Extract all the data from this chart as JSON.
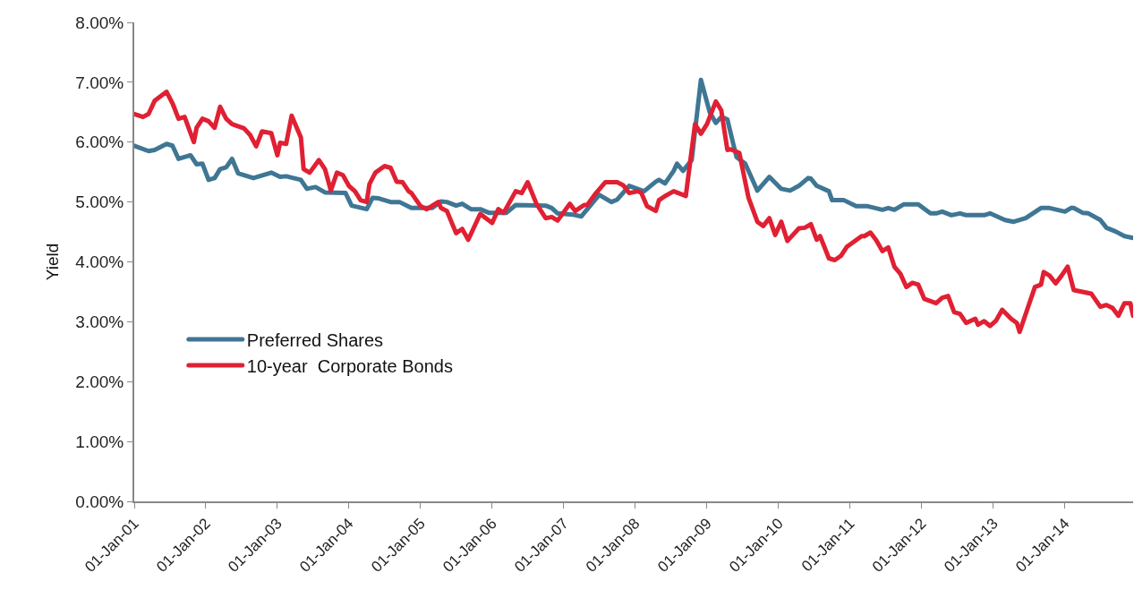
{
  "chart_data": {
    "type": "line",
    "ylabel": "Yield",
    "xlim": [
      "2001-01-01",
      "2014-12-15"
    ],
    "ylim": [
      0,
      8
    ],
    "yticks": [
      {
        "value": 0,
        "label": "0.00%"
      },
      {
        "value": 1,
        "label": "1.00%"
      },
      {
        "value": 2,
        "label": "2.00%"
      },
      {
        "value": 3,
        "label": "3.00%"
      },
      {
        "value": 4,
        "label": "4.00%"
      },
      {
        "value": 5,
        "label": "5.00%"
      },
      {
        "value": 6,
        "label": "6.00%"
      },
      {
        "value": 7,
        "label": "7.00%"
      },
      {
        "value": 8,
        "label": "8.00%"
      }
    ],
    "xticks": [
      {
        "value": "2001-01-01",
        "label": "01-Jan-01"
      },
      {
        "value": "2002-01-01",
        "label": "01-Jan-02"
      },
      {
        "value": "2003-01-01",
        "label": "01-Jan-03"
      },
      {
        "value": "2004-01-01",
        "label": "01-Jan-04"
      },
      {
        "value": "2005-01-01",
        "label": "01-Jan-05"
      },
      {
        "value": "2006-01-01",
        "label": "01-Jan-06"
      },
      {
        "value": "2007-01-01",
        "label": "01-Jan-07"
      },
      {
        "value": "2008-01-01",
        "label": "01-Jan-08"
      },
      {
        "value": "2009-01-01",
        "label": "01-Jan-09"
      },
      {
        "value": "2010-01-01",
        "label": "01-Jan-10"
      },
      {
        "value": "2011-01-01",
        "label": "01-Jan-11"
      },
      {
        "value": "2012-01-01",
        "label": "01-Jan-12"
      },
      {
        "value": "2013-01-01",
        "label": "01-Jan-13"
      },
      {
        "value": "2014-01-01",
        "label": "01-Jan-14"
      }
    ],
    "grid": false,
    "legend": "left",
    "marker": "none",
    "line_style": "solid",
    "series": [
      {
        "name": "Preferred Shares",
        "color": "#3f7694",
        "x": [
          "2001-01-01",
          "2001-03-15",
          "2001-04-15",
          "2001-06-15",
          "2001-07-15",
          "2001-08-15",
          "2001-10-15",
          "2001-11-15",
          "2001-12-15",
          "2002-01-15",
          "2002-02-15",
          "2002-03-15",
          "2002-04-15",
          "2002-05-15",
          "2002-06-15",
          "2002-09-01",
          "2002-12-01",
          "2003-01-15",
          "2003-02-15",
          "2003-05-01",
          "2003-06-01",
          "2003-07-15",
          "2003-09-01",
          "2003-12-15",
          "2004-01-15",
          "2004-04-01",
          "2004-05-01",
          "2004-06-01",
          "2004-08-01",
          "2004-09-15",
          "2004-11-15",
          "2005-03-01",
          "2005-04-15",
          "2005-05-15",
          "2005-07-01",
          "2005-08-01",
          "2005-09-15",
          "2005-11-01",
          "2005-12-15",
          "2006-03-15",
          "2006-05-01",
          "2006-10-01",
          "2006-11-01",
          "2006-12-01",
          "2007-02-15",
          "2007-04-01",
          "2007-07-01",
          "2007-09-01",
          "2007-10-01",
          "2007-12-01",
          "2008-02-15",
          "2008-04-15",
          "2008-05-01",
          "2008-06-01",
          "2008-07-15",
          "2008-08-01",
          "2008-09-01",
          "2008-10-15",
          "2008-12-01",
          "2009-01-15",
          "2009-02-15",
          "2009-03-15",
          "2009-04-15",
          "2009-05-15",
          "2009-06-01",
          "2009-07-15",
          "2009-09-15",
          "2009-11-15",
          "2010-01-15",
          "2010-03-01",
          "2010-04-15",
          "2010-06-01",
          "2010-06-15",
          "2010-07-15",
          "2010-09-15",
          "2010-10-01",
          "2010-12-01",
          "2011-02-01",
          "2011-04-01",
          "2011-06-15",
          "2011-07-15",
          "2011-08-15",
          "2011-10-01",
          "2011-12-15",
          "2012-02-15",
          "2012-03-15",
          "2012-04-15",
          "2012-06-01",
          "2012-07-15",
          "2012-08-15",
          "2012-11-15",
          "2012-12-15",
          "2013-03-01",
          "2013-04-15",
          "2013-06-15",
          "2013-09-01",
          "2013-10-15",
          "2014-01-01",
          "2014-02-01",
          "2014-02-15",
          "2014-04-01",
          "2014-05-01",
          "2014-07-01",
          "2014-08-01",
          "2014-09-15",
          "2014-11-01",
          "2014-12-15"
        ],
        "values": [
          5.94,
          5.85,
          5.87,
          5.97,
          5.94,
          5.72,
          5.78,
          5.63,
          5.64,
          5.37,
          5.4,
          5.55,
          5.58,
          5.72,
          5.48,
          5.4,
          5.49,
          5.42,
          5.43,
          5.37,
          5.22,
          5.25,
          5.16,
          5.15,
          4.94,
          4.88,
          5.07,
          5.06,
          5.0,
          5.0,
          4.9,
          4.9,
          5.01,
          5.0,
          4.94,
          4.97,
          4.88,
          4.88,
          4.82,
          4.82,
          4.95,
          4.94,
          4.9,
          4.81,
          4.79,
          4.76,
          5.12,
          5.0,
          5.04,
          5.27,
          5.18,
          5.34,
          5.37,
          5.31,
          5.52,
          5.64,
          5.52,
          5.7,
          7.04,
          6.5,
          6.32,
          6.42,
          6.38,
          5.97,
          5.75,
          5.64,
          5.19,
          5.42,
          5.22,
          5.19,
          5.27,
          5.4,
          5.39,
          5.27,
          5.18,
          5.03,
          5.03,
          4.93,
          4.93,
          4.87,
          4.9,
          4.87,
          4.96,
          4.96,
          4.81,
          4.81,
          4.84,
          4.78,
          4.81,
          4.78,
          4.78,
          4.81,
          4.7,
          4.67,
          4.73,
          4.9,
          4.9,
          4.84,
          4.9,
          4.9,
          4.82,
          4.81,
          4.7,
          4.57,
          4.51,
          4.43,
          4.4
        ]
      },
      {
        "name": "10-year  Corporate Bonds",
        "color": "#e02033",
        "x": [
          "2001-01-01",
          "2001-02-15",
          "2001-03-15",
          "2001-04-15",
          "2001-06-15",
          "2001-07-15",
          "2001-08-15",
          "2001-09-15",
          "2001-11-01",
          "2001-11-15",
          "2001-12-15",
          "2002-01-15",
          "2002-02-15",
          "2002-03-15",
          "2002-04-15",
          "2002-05-15",
          "2002-07-15",
          "2002-08-15",
          "2002-09-15",
          "2002-10-15",
          "2002-12-01",
          "2003-01-01",
          "2003-01-15",
          "2003-02-15",
          "2003-03-15",
          "2003-05-01",
          "2003-05-15",
          "2003-06-15",
          "2003-08-01",
          "2003-09-01",
          "2003-10-01",
          "2003-11-01",
          "2003-12-01",
          "2004-01-01",
          "2004-02-01",
          "2004-03-01",
          "2004-04-01",
          "2004-04-15",
          "2004-05-15",
          "2004-07-01",
          "2004-08-01",
          "2004-09-01",
          "2004-10-01",
          "2004-11-01",
          "2004-11-15",
          "2005-01-01",
          "2005-02-01",
          "2005-04-01",
          "2005-04-15",
          "2005-05-15",
          "2005-07-01",
          "2005-08-01",
          "2005-09-01",
          "2005-11-01",
          "2006-01-01",
          "2006-02-01",
          "2006-03-01",
          "2006-05-01",
          "2006-06-01",
          "2006-07-01",
          "2006-08-15",
          "2006-10-01",
          "2006-11-01",
          "2006-12-01",
          "2007-02-01",
          "2007-03-01",
          "2007-04-15",
          "2007-05-01",
          "2007-06-15",
          "2007-08-01",
          "2007-10-01",
          "2007-11-01",
          "2007-12-01",
          "2008-01-15",
          "2008-02-01",
          "2008-03-01",
          "2008-04-15",
          "2008-05-01",
          "2008-06-01",
          "2008-07-15",
          "2008-09-15",
          "2008-11-01",
          "2008-12-01",
          "2009-01-01",
          "2009-02-15",
          "2009-03-15",
          "2009-04-15",
          "2009-05-01",
          "2009-06-15",
          "2009-07-15",
          "2009-08-01",
          "2009-09-15",
          "2009-10-15",
          "2009-11-15",
          "2009-12-15",
          "2010-01-15",
          "2010-02-15",
          "2010-04-15",
          "2010-05-15",
          "2010-06-15",
          "2010-07-15",
          "2010-08-01",
          "2010-09-15",
          "2010-10-15",
          "2010-11-15",
          "2010-12-15",
          "2011-03-01",
          "2011-03-15",
          "2011-04-15",
          "2011-05-15",
          "2011-06-15",
          "2011-07-15",
          "2011-08-15",
          "2011-09-15",
          "2011-10-15",
          "2011-11-15",
          "2011-12-15",
          "2012-01-15",
          "2012-03-15",
          "2012-04-15",
          "2012-05-15",
          "2012-06-15",
          "2012-07-15",
          "2012-08-15",
          "2012-10-01",
          "2012-10-15",
          "2012-11-15",
          "2012-12-15",
          "2013-01-15",
          "2013-02-15",
          "2013-04-01",
          "2013-05-01",
          "2013-05-15",
          "2013-06-15",
          "2013-08-01",
          "2013-09-01",
          "2013-09-15",
          "2013-10-15",
          "2013-11-15",
          "2013-12-15",
          "2014-01-15",
          "2014-02-15",
          "2014-04-01",
          "2014-05-15",
          "2014-07-01",
          "2014-08-01",
          "2014-09-01",
          "2014-10-01",
          "2014-11-01",
          "2014-12-01",
          "2014-12-15"
        ],
        "values": [
          6.47,
          6.42,
          6.47,
          6.69,
          6.84,
          6.65,
          6.39,
          6.42,
          6.0,
          6.24,
          6.39,
          6.35,
          6.24,
          6.59,
          6.39,
          6.3,
          6.23,
          6.12,
          5.93,
          6.18,
          6.15,
          5.78,
          5.99,
          5.97,
          6.44,
          6.08,
          5.55,
          5.49,
          5.7,
          5.55,
          5.19,
          5.49,
          5.45,
          5.27,
          5.18,
          5.03,
          5.0,
          5.3,
          5.49,
          5.6,
          5.57,
          5.34,
          5.33,
          5.18,
          5.15,
          4.93,
          4.88,
          5.0,
          4.9,
          4.85,
          4.48,
          4.55,
          4.37,
          4.8,
          4.65,
          4.88,
          4.82,
          5.18,
          5.15,
          5.33,
          4.97,
          4.73,
          4.75,
          4.69,
          4.97,
          4.85,
          4.95,
          4.95,
          5.15,
          5.33,
          5.33,
          5.28,
          5.15,
          5.18,
          5.15,
          4.93,
          4.85,
          5.03,
          5.1,
          5.18,
          5.1,
          6.3,
          6.14,
          6.3,
          6.68,
          6.53,
          5.87,
          5.88,
          5.82,
          5.34,
          5.07,
          4.67,
          4.6,
          4.73,
          4.45,
          4.67,
          4.35,
          4.56,
          4.57,
          4.63,
          4.37,
          4.43,
          4.06,
          4.03,
          4.1,
          4.25,
          4.43,
          4.43,
          4.49,
          4.36,
          4.18,
          4.24,
          3.92,
          3.8,
          3.58,
          3.65,
          3.62,
          3.38,
          3.31,
          3.4,
          3.43,
          3.16,
          3.13,
          2.98,
          3.05,
          2.95,
          3.01,
          2.93,
          3.02,
          3.2,
          3.05,
          2.98,
          2.83,
          3.13,
          3.58,
          3.62,
          3.83,
          3.77,
          3.64,
          3.77,
          3.92,
          3.53,
          3.5,
          3.47,
          3.25,
          3.28,
          3.23,
          3.1,
          3.31,
          3.31,
          3.1
        ]
      }
    ]
  }
}
